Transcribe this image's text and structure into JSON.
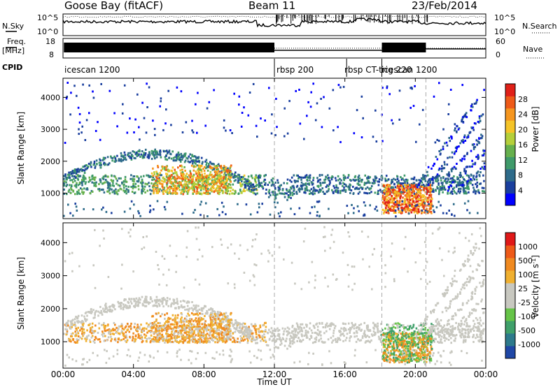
{
  "header": {
    "station": "Goose Bay (fitACF)",
    "beam": "Beam 11",
    "date": "23/Feb/2014"
  },
  "strip_labels": {
    "nsky": "N.Sky",
    "nsearch": "N.Search",
    "freq": "Freq.",
    "freq_unit": "[MHz]",
    "nave": "Nave",
    "cpid": "CPID"
  },
  "strip_ticks": {
    "nsky_left": [
      "10^5",
      "10^0"
    ],
    "nsky_right": [
      "10^5",
      "10^0"
    ],
    "freq_left": [
      "18",
      "8"
    ],
    "nave_right": [
      "60",
      "0"
    ]
  },
  "cpid_segments": [
    {
      "label": "icescan 1200",
      "start_hr": 0.0
    },
    {
      "label": "rbsp 200",
      "start_hr": 12.0
    },
    {
      "label": "rbsp CT-trig 220",
      "start_hr": 16.1
    },
    {
      "label": "icescan 1200",
      "start_hr": 18.1
    }
  ],
  "chart_data": [
    {
      "type": "heatmap",
      "name": "power",
      "ylabel": "Slant Range [km]",
      "y_ticks": [
        "1000",
        "2000",
        "3000",
        "4000"
      ],
      "ylim": [
        200,
        4600
      ],
      "xlim_hr": [
        0,
        24
      ],
      "colorbar": {
        "label": "Power [dB]",
        "ticks": [
          "28",
          "24",
          "20",
          "16",
          "12",
          "8",
          "4"
        ],
        "colors": [
          "#0000ff",
          "#1a3f9e",
          "#2e6b8a",
          "#3f9a6a",
          "#66b04d",
          "#b5cf3a",
          "#f5c428",
          "#f5961f",
          "#ee5a18",
          "#e02018"
        ]
      },
      "dashed_lines_hr": [
        12.0,
        18.1,
        20.6
      ]
    },
    {
      "type": "heatmap",
      "name": "velocity",
      "ylabel": "Slant Range [km]",
      "y_ticks": [
        "1000",
        "2000",
        "3000",
        "4000"
      ],
      "ylim": [
        200,
        4600
      ],
      "xlim_hr": [
        0,
        24
      ],
      "colorbar": {
        "label": "Velocity [m s-1]",
        "ticks": [
          "1000",
          "500",
          "100",
          "25",
          "-25",
          "-100",
          "-500",
          "-1000"
        ],
        "colors": [
          "#1f47a6",
          "#2d7a8c",
          "#3fa06a",
          "#66c448",
          "#c8c8c0",
          "#c8c8c0",
          "#f0b030",
          "#f08a20",
          "#ee5a18",
          "#e01818"
        ]
      },
      "dashed_lines_hr": [
        12.0,
        18.1,
        20.6
      ]
    }
  ],
  "x_axis": {
    "ticks": [
      "00:00",
      "04:00",
      "08:00",
      "12:00",
      "16:00",
      "20:00",
      "00:00"
    ],
    "label": "Time UT"
  }
}
